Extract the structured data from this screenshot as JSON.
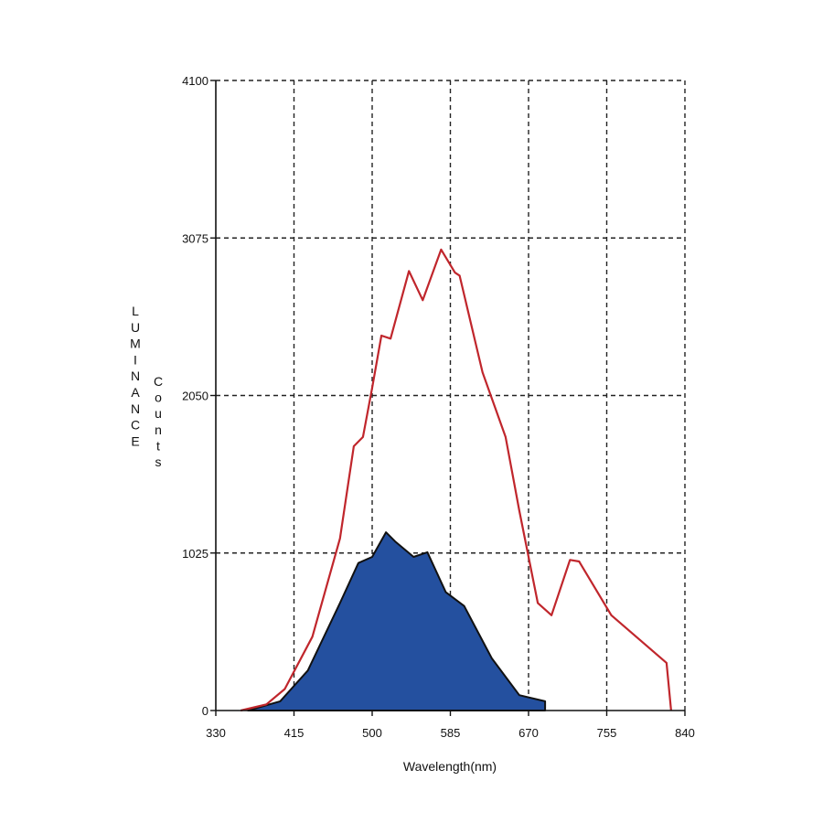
{
  "chart_data": {
    "type": "area",
    "title": "",
    "xlabel": "Wavelength(nm)",
    "ylabel_left": "LUMINANCE",
    "ylabel_right": "Counts",
    "xlim": [
      330,
      840
    ],
    "ylim": [
      0,
      4100
    ],
    "x_ticks": [
      "330",
      "415",
      "500",
      "585",
      "670",
      "755",
      "840"
    ],
    "y_ticks": [
      "0",
      "1025",
      "2050",
      "3075",
      "4100"
    ],
    "grid": true,
    "legend": "none",
    "series": [
      {
        "style": "line",
        "color": "#c0262c",
        "x": [
          357,
          385,
          405,
          435,
          465,
          480,
          490,
          500,
          510,
          520,
          540,
          555,
          575,
          590,
          595,
          620,
          645,
          660,
          680,
          695,
          715,
          725,
          760,
          820,
          825
        ],
        "y": [
          0,
          40,
          140,
          480,
          1120,
          1720,
          1780,
          2100,
          2440,
          2420,
          2860,
          2670,
          3000,
          2850,
          2830,
          2200,
          1780,
          1300,
          700,
          620,
          980,
          970,
          620,
          310,
          0
        ]
      },
      {
        "style": "area",
        "color": "#24509f",
        "stroke": "#111111",
        "x": [
          365,
          400,
          430,
          465,
          485,
          500,
          515,
          525,
          545,
          560,
          580,
          600,
          630,
          660,
          688
        ],
        "y": [
          0,
          60,
          260,
          700,
          960,
          1000,
          1160,
          1100,
          1000,
          1030,
          770,
          680,
          340,
          100,
          60
        ]
      }
    ]
  }
}
